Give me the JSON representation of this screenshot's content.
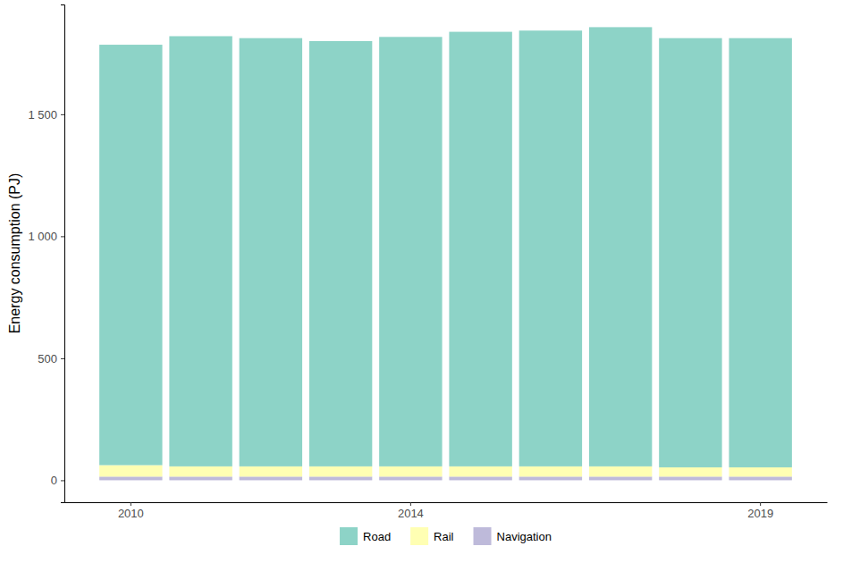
{
  "chart_data": {
    "type": "bar",
    "stacked": true,
    "y_label": "Energy consumption (PJ)",
    "categories": [
      "2010",
      null,
      null,
      null,
      "2014",
      null,
      null,
      null,
      null,
      "2019"
    ],
    "series": [
      {
        "name": "Road",
        "color": "#8dd3c7",
        "values": [
          1723,
          1763,
          1755,
          1743,
          1760,
          1781,
          1786,
          1800,
          1759,
          1759
        ]
      },
      {
        "name": "Rail",
        "color": "#ffffb3",
        "values": [
          47,
          42,
          42,
          42,
          42,
          42,
          42,
          42,
          38,
          38
        ]
      },
      {
        "name": "Navigation",
        "color": "#bebada",
        "values": [
          15,
          15,
          15,
          15,
          15,
          15,
          15,
          15,
          15,
          15
        ]
      }
    ],
    "ylim": [
      -90,
      1950
    ],
    "yticks": [
      0,
      500,
      {
        "value": 1000,
        "label": "1 000"
      },
      {
        "value": 1500,
        "label": "1 500"
      }
    ],
    "legend": "bottom"
  }
}
